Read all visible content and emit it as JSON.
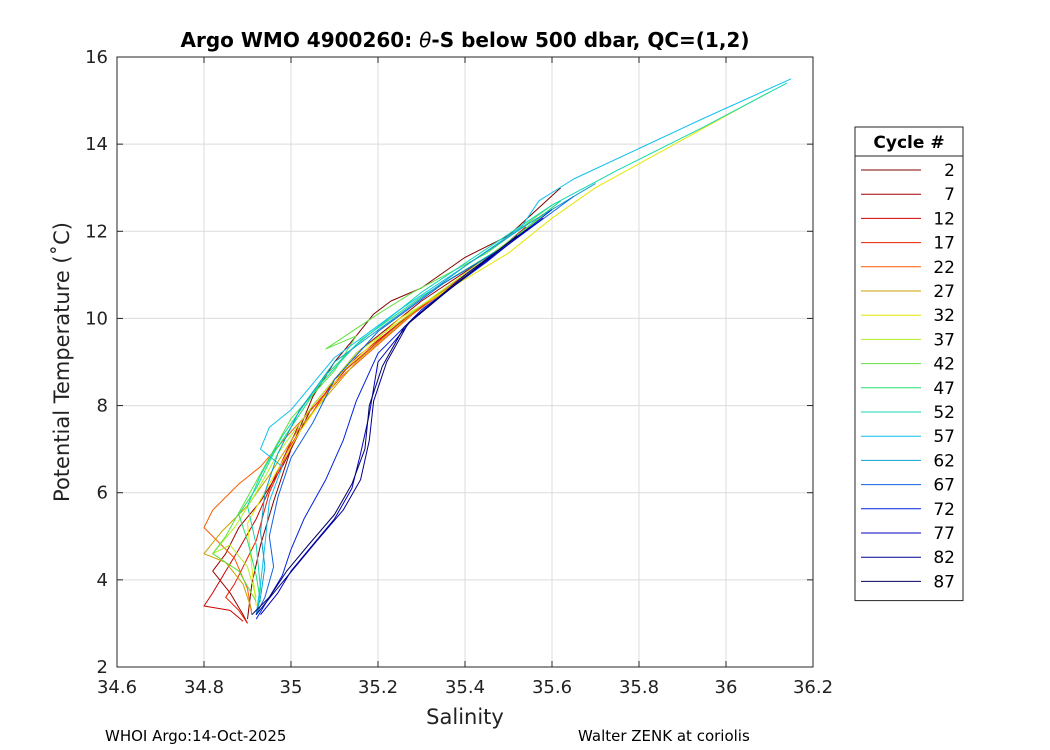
{
  "chart_data": {
    "type": "line",
    "title_prefix": "Argo WMO 4900260: ",
    "title_symbol": "θ",
    "title_suffix": "-S below 500 dbar,  QC=(1,2)",
    "xlabel": "Salinity",
    "ylabel": "Potential Temperature (˚C)",
    "xlim": [
      34.6,
      36.2
    ],
    "ylim": [
      2,
      16
    ],
    "xticks": [
      34.6,
      34.8,
      35,
      35.2,
      35.4,
      35.6,
      35.8,
      36,
      36.2
    ],
    "xtick_labels": [
      "34.6",
      "34.8",
      "35",
      "35.2",
      "35.4",
      "35.6",
      "35.8",
      "36",
      "36.2"
    ],
    "yticks": [
      2,
      4,
      6,
      8,
      10,
      12,
      14,
      16
    ],
    "ytick_labels": [
      "2",
      "4",
      "6",
      "8",
      "10",
      "12",
      "14",
      "16"
    ],
    "grid": true,
    "legend": {
      "title": "Cycle #",
      "position": "right"
    },
    "series": [
      {
        "name": "2",
        "color": "#800000",
        "points": [
          [
            35.62,
            13.0
          ],
          [
            35.5,
            11.9
          ],
          [
            35.4,
            11.4
          ],
          [
            35.3,
            10.7
          ],
          [
            35.23,
            10.4
          ],
          [
            35.19,
            10.1
          ],
          [
            35.15,
            9.6
          ],
          [
            35.1,
            9.0
          ],
          [
            35.05,
            8.2
          ],
          [
            35.0,
            7.0
          ],
          [
            34.96,
            5.8
          ],
          [
            34.93,
            4.8
          ],
          [
            34.91,
            3.9
          ],
          [
            34.9,
            3.1
          ]
        ]
      },
      {
        "name": "7",
        "color": "#a00000",
        "points": [
          [
            35.56,
            12.2
          ],
          [
            35.45,
            11.4
          ],
          [
            35.3,
            10.4
          ],
          [
            35.15,
            9.2
          ],
          [
            35.05,
            8.0
          ],
          [
            34.98,
            6.6
          ],
          [
            34.93,
            5.8
          ],
          [
            34.88,
            5.2
          ],
          [
            34.85,
            4.6
          ],
          [
            34.82,
            4.2
          ],
          [
            34.86,
            3.7
          ],
          [
            34.89,
            3.2
          ],
          [
            34.9,
            3.0
          ]
        ]
      },
      {
        "name": "12",
        "color": "#cc0000",
        "points": [
          [
            35.54,
            12.1
          ],
          [
            35.42,
            11.1
          ],
          [
            35.3,
            10.3
          ],
          [
            35.15,
            9.1
          ],
          [
            35.02,
            7.6
          ],
          [
            34.96,
            6.3
          ],
          [
            34.92,
            5.4
          ],
          [
            34.88,
            4.7
          ],
          [
            34.85,
            4.2
          ],
          [
            34.82,
            3.7
          ],
          [
            34.8,
            3.4
          ],
          [
            34.86,
            3.3
          ],
          [
            34.89,
            3.05
          ]
        ]
      },
      {
        "name": "17",
        "color": "#e82000",
        "points": [
          [
            35.55,
            12.1
          ],
          [
            35.4,
            11.0
          ],
          [
            35.25,
            9.9
          ],
          [
            35.1,
            8.6
          ],
          [
            35.0,
            7.1
          ],
          [
            34.95,
            6.0
          ],
          [
            34.92,
            4.9
          ],
          [
            34.89,
            4.3
          ],
          [
            34.87,
            3.9
          ],
          [
            34.85,
            3.6
          ],
          [
            34.88,
            3.3
          ],
          [
            34.9,
            3.0
          ]
        ]
      },
      {
        "name": "22",
        "color": "#ff5a00",
        "points": [
          [
            35.56,
            12.2
          ],
          [
            35.42,
            11.1
          ],
          [
            35.28,
            10.1
          ],
          [
            35.12,
            8.7
          ],
          [
            35.0,
            7.4
          ],
          [
            34.93,
            6.6
          ],
          [
            34.88,
            6.2
          ],
          [
            34.82,
            5.6
          ],
          [
            34.8,
            5.2
          ],
          [
            34.83,
            4.9
          ],
          [
            34.87,
            4.5
          ],
          [
            34.9,
            3.8
          ],
          [
            34.91,
            3.2
          ]
        ]
      },
      {
        "name": "27",
        "color": "#c8a000",
        "points": [
          [
            35.58,
            12.4
          ],
          [
            35.45,
            11.3
          ],
          [
            35.3,
            10.3
          ],
          [
            35.15,
            9.0
          ],
          [
            35.02,
            7.5
          ],
          [
            34.95,
            6.4
          ],
          [
            34.9,
            5.7
          ],
          [
            34.84,
            5.1
          ],
          [
            34.8,
            4.6
          ],
          [
            34.85,
            4.4
          ],
          [
            34.89,
            3.9
          ],
          [
            34.91,
            3.3
          ]
        ]
      },
      {
        "name": "32",
        "color": "#e6e600",
        "points": [
          [
            36.1,
            15.2
          ],
          [
            35.9,
            14.1
          ],
          [
            35.7,
            13.0
          ],
          [
            35.6,
            12.3
          ],
          [
            35.5,
            11.5
          ],
          [
            35.4,
            10.9
          ],
          [
            35.25,
            10.0
          ],
          [
            35.12,
            8.8
          ],
          [
            35.02,
            7.4
          ],
          [
            34.95,
            6.2
          ],
          [
            34.9,
            5.3
          ],
          [
            34.91,
            4.3
          ],
          [
            34.92,
            3.4
          ]
        ]
      },
      {
        "name": "37",
        "color": "#b0f020",
        "points": [
          [
            35.6,
            12.5
          ],
          [
            35.45,
            11.4
          ],
          [
            35.3,
            10.3
          ],
          [
            35.15,
            9.2
          ],
          [
            35.05,
            8.0
          ],
          [
            34.97,
            6.9
          ],
          [
            34.92,
            6.0
          ],
          [
            34.87,
            5.2
          ],
          [
            34.82,
            4.6
          ],
          [
            34.86,
            4.8
          ],
          [
            34.9,
            4.3
          ],
          [
            34.92,
            3.6
          ]
        ]
      },
      {
        "name": "42",
        "color": "#60e040",
        "points": [
          [
            35.6,
            12.6
          ],
          [
            35.45,
            11.5
          ],
          [
            35.28,
            10.6
          ],
          [
            35.2,
            10.1
          ],
          [
            35.08,
            9.3
          ],
          [
            35.15,
            9.6
          ],
          [
            35.1,
            8.8
          ],
          [
            35.0,
            7.7
          ],
          [
            34.95,
            6.8
          ],
          [
            34.9,
            5.9
          ],
          [
            34.85,
            5.0
          ],
          [
            34.82,
            4.6
          ],
          [
            34.88,
            4.2
          ],
          [
            34.92,
            3.5
          ]
        ]
      },
      {
        "name": "47",
        "color": "#20e070",
        "points": [
          [
            35.62,
            12.7
          ],
          [
            35.48,
            11.6
          ],
          [
            35.3,
            10.5
          ],
          [
            35.16,
            9.5
          ],
          [
            35.08,
            8.7
          ],
          [
            35.02,
            7.8
          ],
          [
            34.96,
            6.9
          ],
          [
            34.92,
            6.1
          ],
          [
            34.88,
            5.5
          ],
          [
            34.9,
            4.9
          ],
          [
            34.92,
            4.1
          ],
          [
            34.93,
            3.5
          ]
        ]
      },
      {
        "name": "52",
        "color": "#10d8b0",
        "points": [
          [
            36.14,
            15.4
          ],
          [
            35.95,
            14.4
          ],
          [
            35.75,
            13.4
          ],
          [
            35.6,
            12.6
          ],
          [
            35.45,
            11.6
          ],
          [
            35.3,
            10.6
          ],
          [
            35.15,
            9.4
          ],
          [
            35.05,
            8.3
          ],
          [
            34.98,
            7.3
          ],
          [
            34.93,
            6.4
          ],
          [
            34.9,
            5.7
          ],
          [
            34.92,
            4.8
          ],
          [
            34.93,
            3.8
          ],
          [
            34.92,
            3.2
          ]
        ]
      },
      {
        "name": "57",
        "color": "#10c0f0",
        "points": [
          [
            36.15,
            15.5
          ],
          [
            35.95,
            14.6
          ],
          [
            35.8,
            13.9
          ],
          [
            35.65,
            13.2
          ],
          [
            35.57,
            12.7
          ],
          [
            35.53,
            12.1
          ],
          [
            35.4,
            11.2
          ],
          [
            35.25,
            10.2
          ],
          [
            35.1,
            9.1
          ],
          [
            35.0,
            7.9
          ],
          [
            34.95,
            7.5
          ],
          [
            34.93,
            7.0
          ],
          [
            34.98,
            6.6
          ],
          [
            34.95,
            5.8
          ],
          [
            34.94,
            4.8
          ],
          [
            34.93,
            3.9
          ],
          [
            34.92,
            3.2
          ]
        ]
      },
      {
        "name": "62",
        "color": "#0aa0d0",
        "points": [
          [
            35.7,
            13.1
          ],
          [
            35.55,
            12.2
          ],
          [
            35.4,
            11.2
          ],
          [
            35.25,
            10.1
          ],
          [
            35.1,
            9.0
          ],
          [
            35.02,
            7.9
          ],
          [
            34.97,
            6.9
          ],
          [
            34.94,
            6.0
          ],
          [
            34.93,
            5.1
          ],
          [
            34.94,
            4.3
          ],
          [
            34.93,
            3.6
          ],
          [
            34.92,
            3.2
          ]
        ]
      },
      {
        "name": "67",
        "color": "#1060e0",
        "points": [
          [
            35.65,
            12.8
          ],
          [
            35.5,
            11.7
          ],
          [
            35.35,
            10.8
          ],
          [
            35.2,
            9.7
          ],
          [
            35.1,
            8.6
          ],
          [
            35.05,
            7.6
          ],
          [
            35.0,
            6.8
          ],
          [
            34.97,
            5.9
          ],
          [
            34.95,
            5.0
          ],
          [
            34.96,
            4.3
          ],
          [
            34.94,
            3.6
          ],
          [
            34.92,
            3.2
          ]
        ]
      },
      {
        "name": "72",
        "color": "#0020e0",
        "points": [
          [
            35.6,
            12.5
          ],
          [
            35.45,
            11.3
          ],
          [
            35.3,
            10.2
          ],
          [
            35.2,
            9.2
          ],
          [
            35.15,
            8.1
          ],
          [
            35.12,
            7.2
          ],
          [
            35.08,
            6.3
          ],
          [
            35.03,
            5.4
          ],
          [
            35.0,
            4.7
          ],
          [
            34.98,
            4.1
          ],
          [
            34.95,
            3.6
          ],
          [
            34.92,
            3.1
          ]
        ]
      },
      {
        "name": "77",
        "color": "#0000c0",
        "points": [
          [
            35.58,
            12.3
          ],
          [
            35.42,
            11.1
          ],
          [
            35.28,
            10.0
          ],
          [
            35.2,
            9.0
          ],
          [
            35.18,
            7.8
          ],
          [
            35.16,
            6.9
          ],
          [
            35.14,
            6.1
          ],
          [
            35.1,
            5.4
          ],
          [
            35.05,
            4.8
          ],
          [
            35.0,
            4.2
          ],
          [
            34.97,
            3.7
          ],
          [
            34.93,
            3.2
          ]
        ]
      },
      {
        "name": "82",
        "color": "#000090",
        "points": [
          [
            35.55,
            12.1
          ],
          [
            35.4,
            11.0
          ],
          [
            35.27,
            9.9
          ],
          [
            35.22,
            9.0
          ],
          [
            35.19,
            8.1
          ],
          [
            35.18,
            7.2
          ],
          [
            35.16,
            6.3
          ],
          [
            35.12,
            5.6
          ],
          [
            35.06,
            4.9
          ],
          [
            35.01,
            4.3
          ],
          [
            34.96,
            3.7
          ],
          [
            34.92,
            3.2
          ]
        ]
      },
      {
        "name": "87",
        "color": "#000060",
        "points": [
          [
            35.52,
            11.9
          ],
          [
            35.38,
            10.8
          ],
          [
            35.26,
            9.8
          ],
          [
            35.21,
            8.9
          ],
          [
            35.18,
            8.0
          ],
          [
            35.17,
            7.0
          ],
          [
            35.14,
            6.2
          ],
          [
            35.1,
            5.5
          ],
          [
            35.04,
            4.8
          ],
          [
            34.99,
            4.2
          ],
          [
            34.95,
            3.6
          ],
          [
            34.91,
            3.2
          ]
        ]
      }
    ]
  },
  "footer": {
    "left": "WHOI Argo:14-Oct-2025",
    "right": "Walter ZENK at coriolis"
  }
}
